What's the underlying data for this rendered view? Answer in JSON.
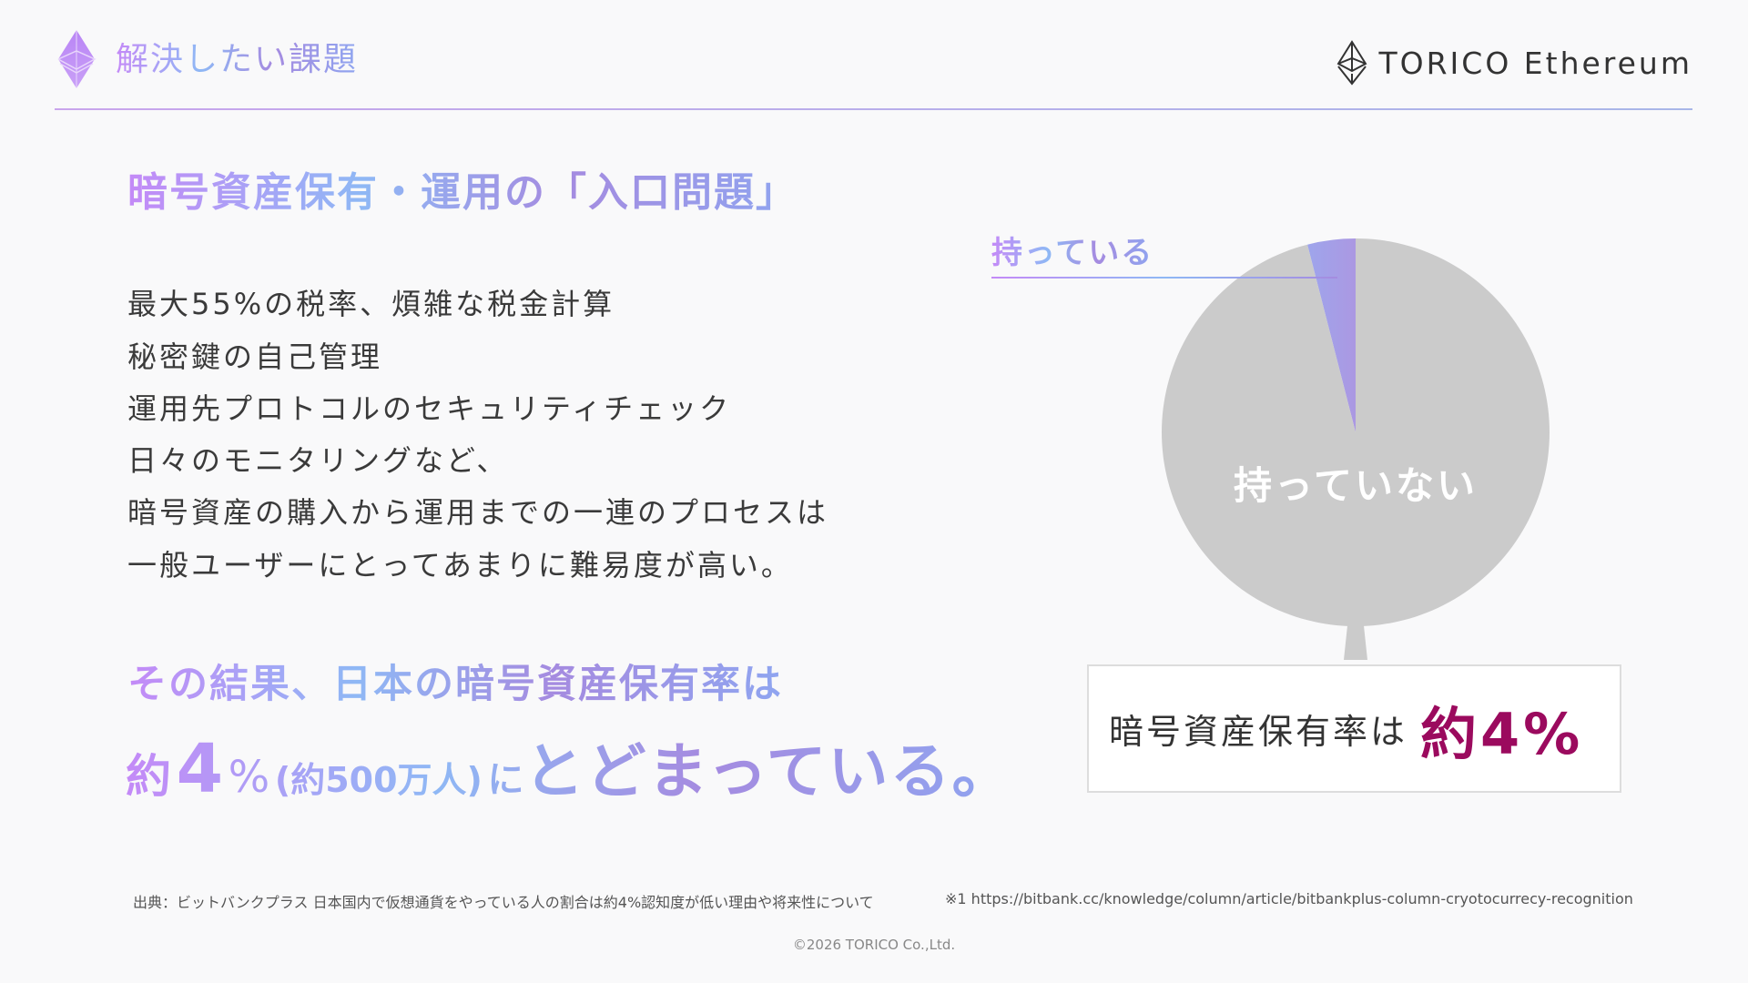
{
  "header": {
    "title": "解決したい課題",
    "logo_text": "TORICO Ethereum",
    "title_icon": "ethereum-diamond-icon",
    "logo_icon": "ethereum-outline-icon"
  },
  "main": {
    "heading": "暗号資産保有・運用の「入口問題」",
    "body_lines": [
      "最大55%の税率、煩雑な税金計算",
      "秘密鍵の自己管理",
      "運用先プロトコルのセキュリティチェック",
      "日々のモニタリングなど、",
      "暗号資産の購入から運用までの一連のプロセスは",
      "一般ユーザーにとってあまりに難易度が高い。"
    ],
    "result_line1": "その結果、日本の暗号資産保有率は",
    "result_line2": {
      "prefix": "約",
      "number": "4",
      "percent": "%",
      "paren": "(約500万人)",
      "particle": "に",
      "tail": "とどまっている。"
    }
  },
  "chart_data": {
    "type": "pie",
    "slices": [
      {
        "label": "持っている",
        "value": 4,
        "color": "#a99be8"
      },
      {
        "label": "持っていない",
        "value": 96,
        "color": "#cbcbcb"
      }
    ]
  },
  "callout": {
    "text": "暗号資産保有率は",
    "value": "約4%"
  },
  "footer": {
    "source": "出典：ビットバンクプラス 日本国内で仮想通貨をやっている人の割合は約4%認知度が低い理由や将来性について",
    "url": "※1 https://bitbank.cc/knowledge/column/article/bitbankplus-column-cryotocurrecy-recognition",
    "copyright": "©2026 TORICO Co.,Ltd."
  },
  "colors": {
    "accent_value": "#9b0a5e",
    "pie_rest": "#cbcbcb",
    "pie_have": "#a99be8"
  }
}
